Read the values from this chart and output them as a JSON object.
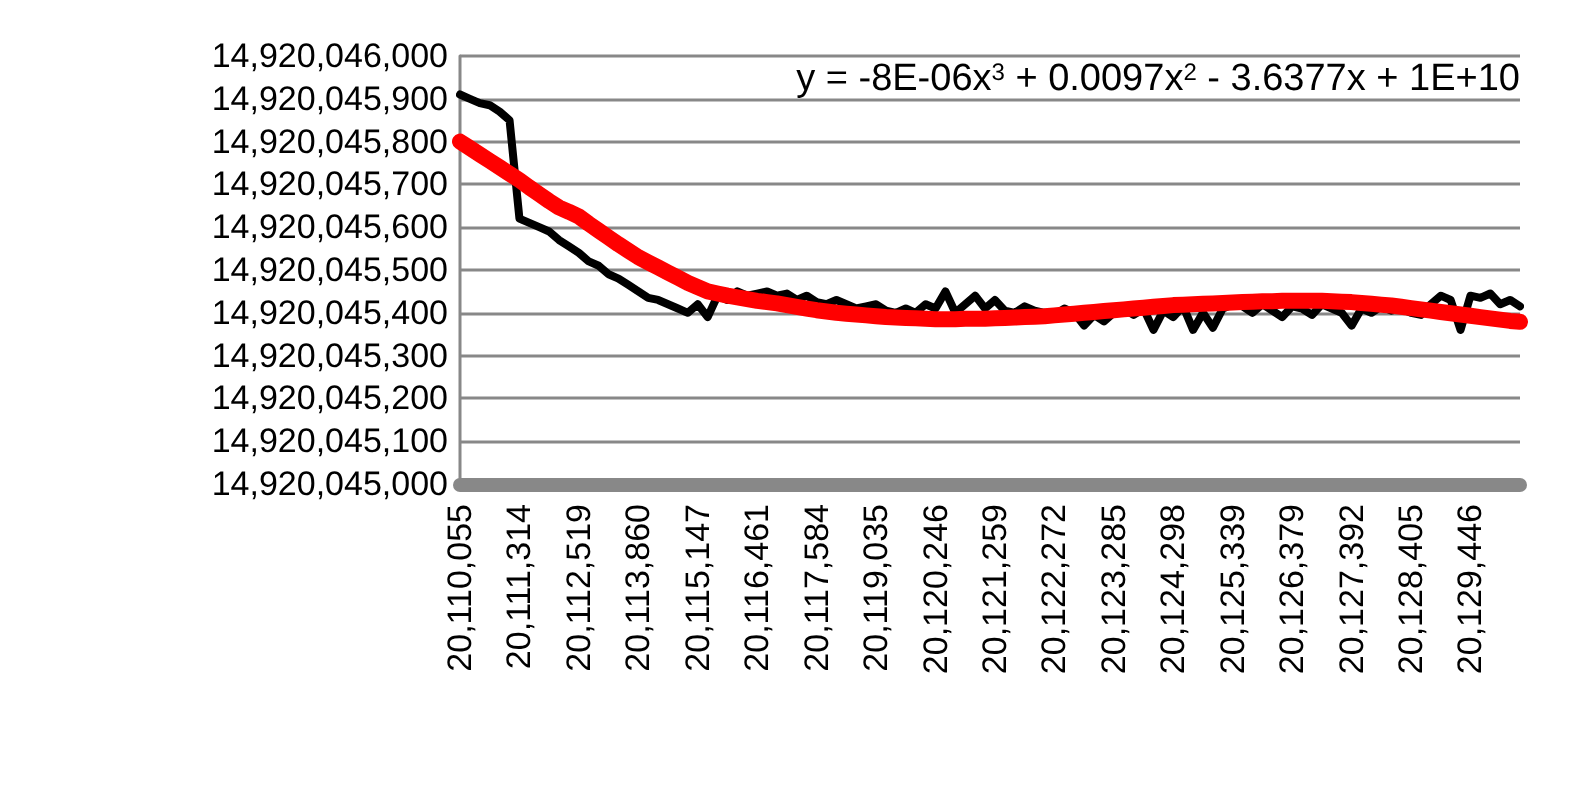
{
  "chart_data": {
    "type": "line",
    "categories": [
      "20,110,055",
      null,
      null,
      null,
      null,
      null,
      "20,111,314",
      null,
      null,
      null,
      null,
      null,
      "20,112,519",
      null,
      null,
      null,
      null,
      null,
      "20,113,860",
      null,
      null,
      null,
      null,
      null,
      "20,115,147",
      null,
      null,
      null,
      null,
      null,
      "20,116,461",
      null,
      null,
      null,
      null,
      null,
      "20,117,584",
      null,
      null,
      null,
      null,
      null,
      "20,119,035",
      null,
      null,
      null,
      null,
      null,
      "20,120,246",
      null,
      null,
      null,
      null,
      null,
      "20,121,259",
      null,
      null,
      null,
      null,
      null,
      "20,122,272",
      null,
      null,
      null,
      null,
      null,
      "20,123,285",
      null,
      null,
      null,
      null,
      null,
      "20,124,298",
      null,
      null,
      null,
      null,
      null,
      "20,125,339",
      null,
      null,
      null,
      null,
      null,
      "20,126,379",
      null,
      null,
      null,
      null,
      null,
      "20,127,392",
      null,
      null,
      null,
      null,
      null,
      "20,128,405",
      null,
      null,
      null,
      null,
      null,
      "20,129,446",
      null,
      null,
      null,
      null,
      null
    ],
    "series": [
      {
        "color": "#000000",
        "values": [
          14920045910,
          14920045900,
          14920045890,
          14920045885,
          14920045870,
          14920045850,
          14920045620,
          14920045610,
          14920045600,
          14920045590,
          14920045570,
          14920045555,
          14920045540,
          14920045520,
          14920045510,
          14920045490,
          14920045480,
          14920045465,
          14920045450,
          14920045435,
          14920045430,
          14920045420,
          14920045410,
          14920045400,
          14920045420,
          14920045390,
          14920045440,
          14920045430,
          14920045450,
          14920045440,
          14920045445,
          14920045450,
          14920045440,
          14920045445,
          14920045430,
          14920045440,
          14920045425,
          14920045420,
          14920045430,
          14920045420,
          14920045410,
          14920045415,
          14920045420,
          14920045405,
          14920045400,
          14920045410,
          14920045400,
          14920045420,
          14920045410,
          14920045450,
          14920045400,
          14920045420,
          14920045440,
          14920045410,
          14920045430,
          14920045405,
          14920045400,
          14920045415,
          14920045405,
          14920045400,
          14920045395,
          14920045410,
          14920045400,
          14920045370,
          14920045395,
          14920045380,
          14920045400,
          14920045410,
          14920045395,
          14920045410,
          14920045360,
          14920045405,
          14920045390,
          14920045415,
          14920045360,
          14920045400,
          14920045365,
          14920045410,
          14920045420,
          14920045415,
          14920045400,
          14920045420,
          14920045405,
          14920045390,
          14920045415,
          14920045410,
          14920045395,
          14920045420,
          14920045410,
          14920045400,
          14920045370,
          14920045410,
          14920045400,
          14920045415,
          14920045405,
          14920045410,
          14920045400,
          14920045395,
          14920045420,
          14920045440,
          14920045430,
          14920045360,
          14920045440,
          14920045435,
          14920045445,
          14920045420,
          14920045430,
          14920045415
        ]
      },
      {
        "color": "#ff0000",
        "values": [
          14920045800,
          14920045785,
          14920045770,
          14920045755,
          14920045740,
          14920045725,
          14920045710,
          14920045693,
          14920045677,
          14920045661,
          14920045646,
          14920045636,
          14920045625,
          14920045608,
          14920045592,
          14920045576,
          14920045560,
          14920045545,
          14920045530,
          14920045518,
          14920045506,
          14920045494,
          14920045482,
          14920045470,
          14920045460,
          14920045450,
          14920045445,
          14920045440,
          14920045436,
          14920045432,
          14920045428,
          14920045425,
          14920045422,
          14920045418,
          14920045414,
          14920045410,
          14920045406,
          14920045403,
          14920045400,
          14920045398,
          14920045396,
          14920045394,
          14920045392,
          14920045390,
          14920045389,
          14920045388,
          14920045387,
          14920045386,
          14920045385,
          14920045385,
          14920045385,
          14920045386,
          14920045386,
          14920045386,
          14920045387,
          14920045388,
          14920045389,
          14920045390,
          14920045391,
          14920045392,
          14920045394,
          14920045396,
          14920045398,
          14920045400,
          14920045402,
          14920045404,
          14920045406,
          14920045408,
          14920045410,
          14920045412,
          14920045414,
          14920045416,
          14920045418,
          14920045419,
          14920045420,
          14920045421,
          14920045422,
          14920045423,
          14920045424,
          14920045425,
          14920045426,
          14920045427,
          14920045427,
          14920045428,
          14920045428,
          14920045428,
          14920045428,
          14920045428,
          14920045427,
          14920045426,
          14920045425,
          14920045423,
          14920045421,
          14920045419,
          14920045417,
          14920045414,
          14920045411,
          14920045408,
          14920045405,
          14920045402,
          14920045399,
          14920045396,
          14920045393,
          14920045390,
          14920045387,
          14920045384,
          14920045381,
          14920045379
        ]
      }
    ],
    "ylim": [
      14920045000,
      14920046000
    ],
    "yticks": [
      {
        "value": 14920045000,
        "label": "14,920,045,000"
      },
      {
        "value": 14920045100,
        "label": "14,920,045,100"
      },
      {
        "value": 14920045200,
        "label": "14,920,045,200"
      },
      {
        "value": 14920045300,
        "label": "14,920,045,300"
      },
      {
        "value": 14920045400,
        "label": "14,920,045,400"
      },
      {
        "value": 14920045500,
        "label": "14,920,045,500"
      },
      {
        "value": 14920045600,
        "label": "14,920,045,600"
      },
      {
        "value": 14920045700,
        "label": "14,920,045,700"
      },
      {
        "value": 14920045800,
        "label": "14,920,045,800"
      },
      {
        "value": 14920045900,
        "label": "14,920,045,900"
      },
      {
        "value": 14920046000,
        "label": "14,920,046,000"
      }
    ],
    "annotations": [
      "y = -8E-06x$^{3}$ + 0.0097x$^{2}$ - 3.6377x + 1E+10"
    ],
    "grid": "y",
    "marker": "none"
  }
}
